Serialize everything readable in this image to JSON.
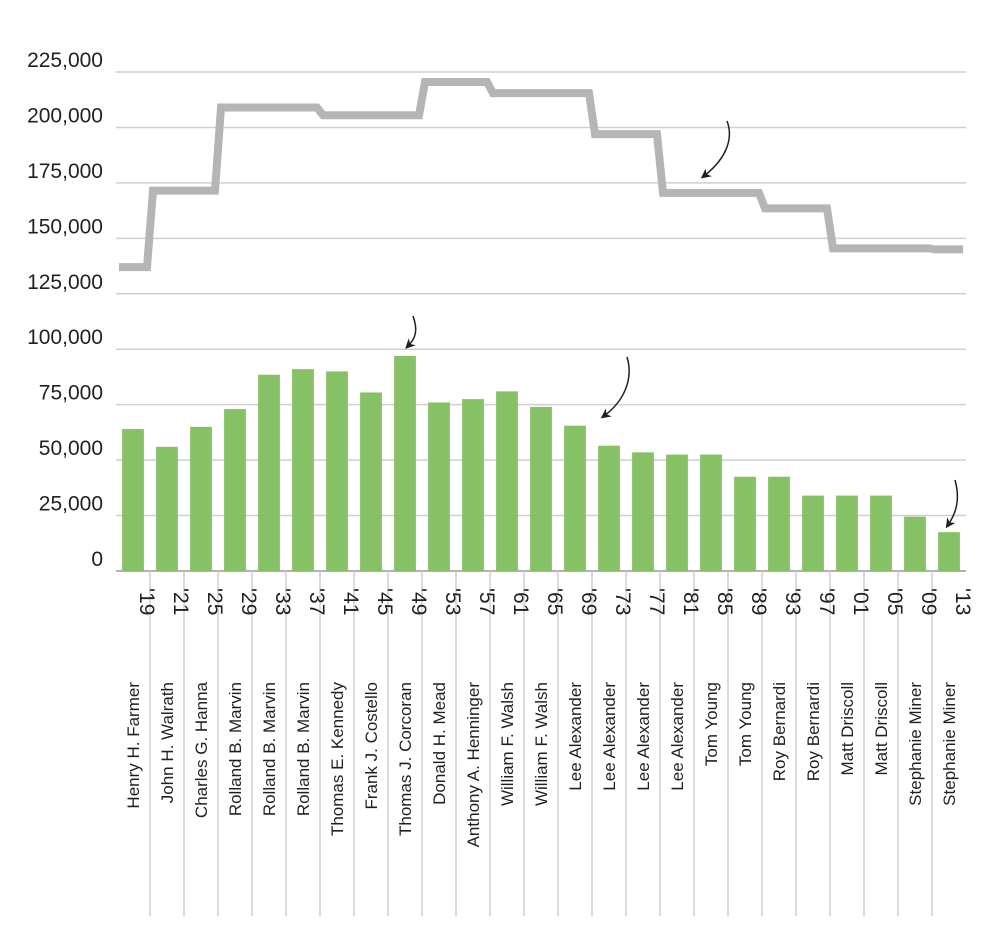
{
  "chart_data": {
    "type": "bar",
    "title": "",
    "xlabel": "",
    "ylabel": "",
    "ylim": [
      0,
      225000
    ],
    "yticks": [
      0,
      25000,
      50000,
      75000,
      100000,
      125000,
      150000,
      175000,
      200000,
      225000
    ],
    "ytick_labels": [
      "0",
      "25,000",
      "50,000",
      "75,000",
      "100,000",
      "125,000",
      "150,000",
      "175,000",
      "200,000",
      "225,000"
    ],
    "grid": true,
    "categories": [
      "'19",
      "'21",
      "'25",
      "'29",
      "'33",
      "'37",
      "'41",
      "'45",
      "'49",
      "'53",
      "'57",
      "'61",
      "'65",
      "'69",
      "'73",
      "'77",
      "'81",
      "'85",
      "'89",
      "'93",
      "'97",
      "'01",
      "'05",
      "'09",
      "'13"
    ],
    "category_names": [
      "Henry H. Farmer",
      "John H. Walrath",
      "Charles G. Hanna",
      "Rolland B. Marvin",
      "Rolland B. Marvin",
      "Rolland B. Marvin",
      "Thomas E. Kennedy",
      "Frank J. Costello",
      "Thomas J. Corcoran",
      "Donald H. Mead",
      "Anthony A. Henninger",
      "William F. Walsh",
      "William F. Walsh",
      "Lee Alexander",
      "Lee Alexander",
      "Lee Alexander",
      "Lee Alexander",
      "Tom Young",
      "Tom Young",
      "Roy Bernardi",
      "Roy Bernardi",
      "Matt Driscoll",
      "Matt Driscoll",
      "Stephanie Miner",
      "Stephanie Miner"
    ],
    "series": [
      {
        "type": "bar",
        "color": "#86c166",
        "values": [
          64000,
          56000,
          65000,
          73000,
          88500,
          91000,
          90000,
          80500,
          97000,
          76000,
          77500,
          81000,
          74000,
          65500,
          56500,
          53500,
          52500,
          52500,
          42500,
          42500,
          34000,
          34000,
          34000,
          24500,
          17500
        ]
      },
      {
        "type": "step-line",
        "color": "#b5b5b5",
        "values": [
          137000,
          171500,
          171500,
          209000,
          209000,
          209000,
          205500,
          205500,
          205500,
          220500,
          220500,
          215500,
          215500,
          215500,
          197000,
          197000,
          170500,
          170500,
          170500,
          163500,
          163500,
          145500,
          145500,
          145500,
          145000
        ]
      }
    ]
  }
}
